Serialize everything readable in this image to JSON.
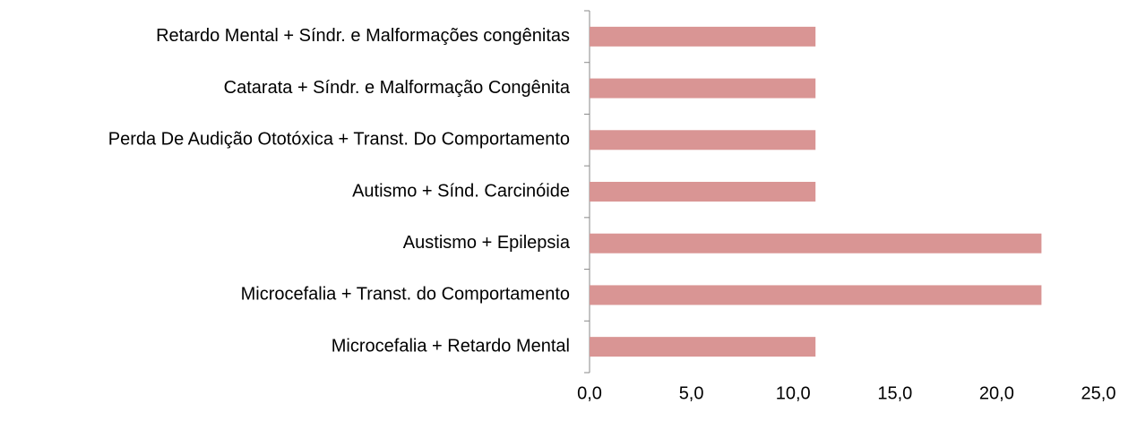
{
  "chart_data": {
    "type": "bar",
    "orientation": "horizontal",
    "categories": [
      "Retardo Mental +  Síndr. e Malformações congênitas",
      "Catarata + Síndr. e Malformação Congênita",
      "Perda De Audição Ototóxica + Transt. Do Comportamento",
      "Autismo + Sínd. Carcinóide",
      "Austismo + Epilepsia",
      "Microcefalia + Transt. do Comportamento",
      "Microcefalia + Retardo Mental"
    ],
    "values": [
      11.1,
      11.1,
      11.1,
      11.1,
      22.2,
      22.2,
      11.1
    ],
    "color": "#d99594",
    "xlim": [
      0,
      25
    ],
    "xticks": [
      {
        "value": 0,
        "label": "0,0"
      },
      {
        "value": 5,
        "label": "5,0"
      },
      {
        "value": 10,
        "label": "10,0"
      },
      {
        "value": 15,
        "label": "15,0"
      },
      {
        "value": 20,
        "label": "20,0"
      },
      {
        "value": 25,
        "label": "25,0"
      }
    ],
    "grid": false
  }
}
